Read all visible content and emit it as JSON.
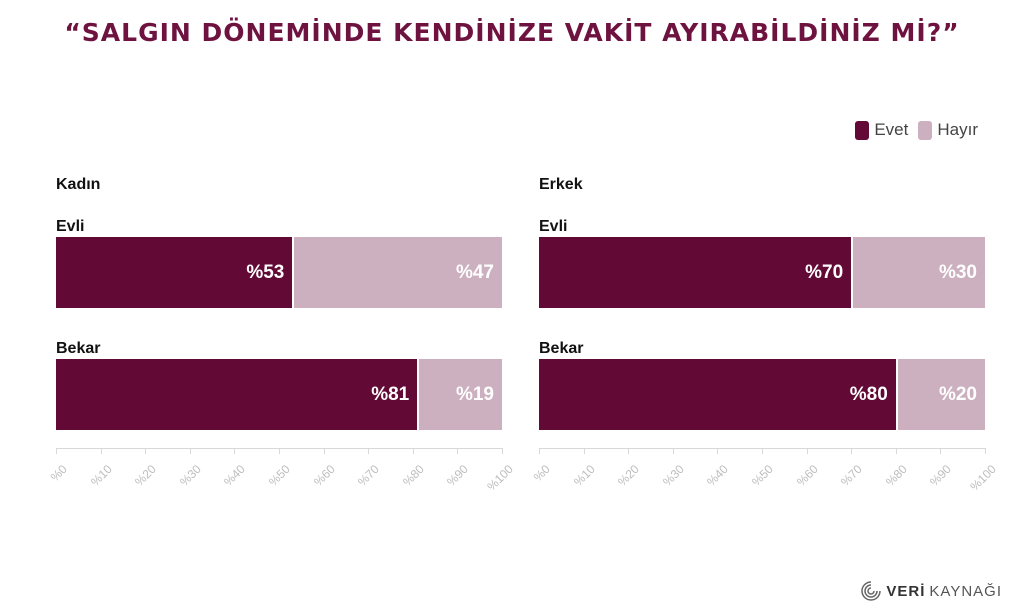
{
  "title": "“SALGIN DÖNEMİNDE KENDİNİZE VAKİT AYIRABİLDİNİZ Mİ?”",
  "legend": [
    {
      "label": "Evet",
      "color": "#620935"
    },
    {
      "label": "Hayır",
      "color": "#ccb0bf"
    }
  ],
  "logo": {
    "part1": "VERİ",
    "part2": "KAYNAĞI"
  },
  "chart_data": [
    {
      "type": "bar",
      "orientation": "horizontal",
      "stacked": true,
      "title": "Kadın",
      "categories": [
        "Evli",
        "Bekar"
      ],
      "series": [
        {
          "name": "Evet",
          "values": [
            53,
            81
          ],
          "labels": [
            "%53",
            "%81"
          ]
        },
        {
          "name": "Hayır",
          "values": [
            47,
            19
          ],
          "labels": [
            "%47",
            "%19"
          ]
        }
      ],
      "xlim": [
        0,
        100
      ],
      "xticks": [
        "%0",
        "%10",
        "%20",
        "%30",
        "%40",
        "%50",
        "%60",
        "%70",
        "%80",
        "%90",
        "%100"
      ]
    },
    {
      "type": "bar",
      "orientation": "horizontal",
      "stacked": true,
      "title": "Erkek",
      "categories": [
        "Evli",
        "Bekar"
      ],
      "series": [
        {
          "name": "Evet",
          "values": [
            70,
            80
          ],
          "labels": [
            "%70",
            "%80"
          ]
        },
        {
          "name": "Hayır",
          "values": [
            30,
            20
          ],
          "labels": [
            "%30",
            "%20"
          ]
        }
      ],
      "xlim": [
        0,
        100
      ],
      "xticks": [
        "%0",
        "%10",
        "%20",
        "%30",
        "%40",
        "%50",
        "%60",
        "%70",
        "%80",
        "%90",
        "%100"
      ]
    }
  ]
}
